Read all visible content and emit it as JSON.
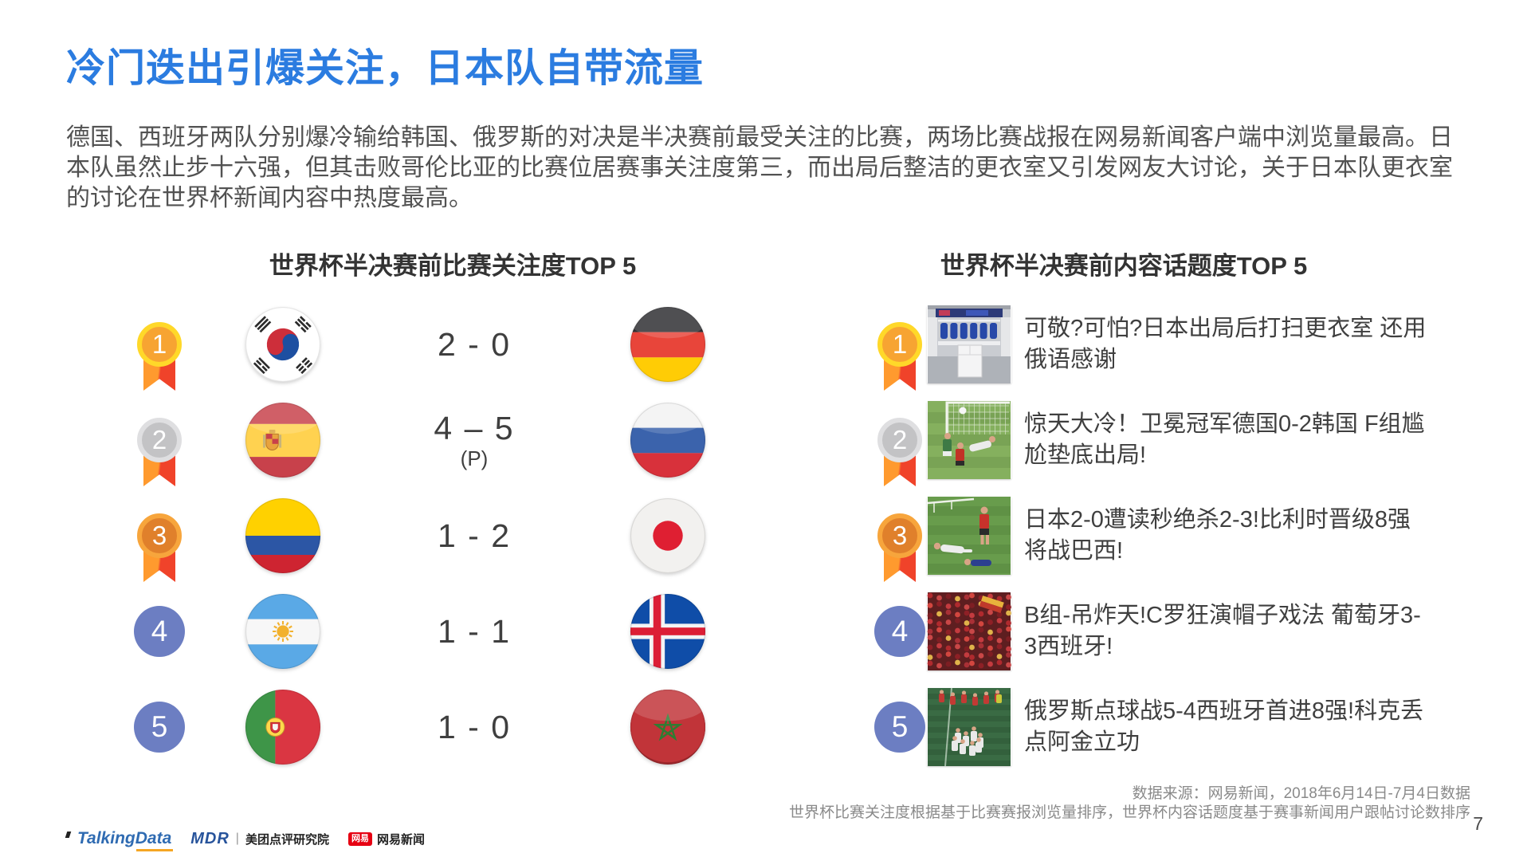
{
  "slide": {
    "title": "冷门迭出引爆关注，日本队自带流量",
    "intro": "德国、西班牙两队分别爆冷输给韩国、俄罗斯的对决是半决赛前最受关注的比赛，两场比赛战报在网易新闻客户端中浏览量最高。日本队虽然止步十六强，但其击败哥伦比亚的比赛位居赛事关注度第三，而出局后整洁的更衣室又引发网友大讨论，关于日本队更衣室的讨论在世界杯新闻内容中热度最高。",
    "page_number": "7"
  },
  "accent_colors": {
    "title_blue": "#2B7CE0",
    "medal_gold_ring": "#FFD829",
    "medal_gold_disc": "#F7A432",
    "medal_silver_ring": "#DFDFE1",
    "medal_silver_disc": "#C3C3C5",
    "medal_bronze_ring": "#F7A53C",
    "medal_bronze_disc": "#E0802B",
    "ribbon_orange": "#FF9A2E",
    "ribbon_red": "#F0432A",
    "rank_badge_blue": "#6C7EC2"
  },
  "match_ranking": {
    "title": "世界杯半决赛前比赛关注度TOP 5",
    "rows": [
      {
        "rank": "1",
        "medal": "gold",
        "team_left": "south-korea",
        "score": "2 - 0",
        "score_note": "",
        "team_right": "germany"
      },
      {
        "rank": "2",
        "medal": "silver",
        "team_left": "spain",
        "score": "4 – 5",
        "score_note": "(P)",
        "team_right": "russia"
      },
      {
        "rank": "3",
        "medal": "bronze",
        "team_left": "colombia",
        "score": "1 - 2",
        "score_note": "",
        "team_right": "japan"
      },
      {
        "rank": "4",
        "medal": "plain",
        "team_left": "argentina",
        "score": "1 - 1",
        "score_note": "",
        "team_right": "iceland"
      },
      {
        "rank": "5",
        "medal": "plain",
        "team_left": "portugal",
        "score": "1 - 0",
        "score_note": "",
        "team_right": "morocco"
      }
    ]
  },
  "topic_ranking": {
    "title": "世界杯半决赛前内容话题度TOP 5",
    "rows": [
      {
        "rank": "1",
        "medal": "gold",
        "thumbnail": "locker-room",
        "headline": "可敬?可怕?日本出局后打扫更衣室 还用俄语感谢"
      },
      {
        "rank": "2",
        "medal": "silver",
        "thumbnail": "germany-korea-goal",
        "headline": "惊天大冷！卫冕冠军德国0-2韩国 F组尴尬垫底出局!"
      },
      {
        "rank": "3",
        "medal": "bronze",
        "thumbnail": "japan-belgium",
        "headline": "日本2-0遭读秒绝杀2-3!比利时晋级8强将战巴西!"
      },
      {
        "rank": "4",
        "medal": "plain",
        "thumbnail": "portugal-fans",
        "headline": "B组-吊炸天!C罗狂演帽子戏法 葡萄牙3-3西班牙!"
      },
      {
        "rank": "5",
        "medal": "plain",
        "thumbnail": "russia-celebration",
        "headline": "俄罗斯点球战5-4西班牙首进8强!科克丢点阿金立功"
      }
    ]
  },
  "footer": {
    "source_line1": "数据来源：网易新闻，2018年6月14日-7月4日数据",
    "source_line2": "世界杯比赛关注度根据基于比赛赛报浏览量排序，世界杯内容话题度基于赛事新闻用户跟帖讨论数排序",
    "logos": [
      {
        "id": "talkingdata",
        "label": "TalkingData"
      },
      {
        "id": "meituan-dianping-research",
        "mark": "MDR",
        "label": "美团点评研究院"
      },
      {
        "id": "netease-news",
        "badge": "网易",
        "label": "网易新闻"
      }
    ]
  }
}
